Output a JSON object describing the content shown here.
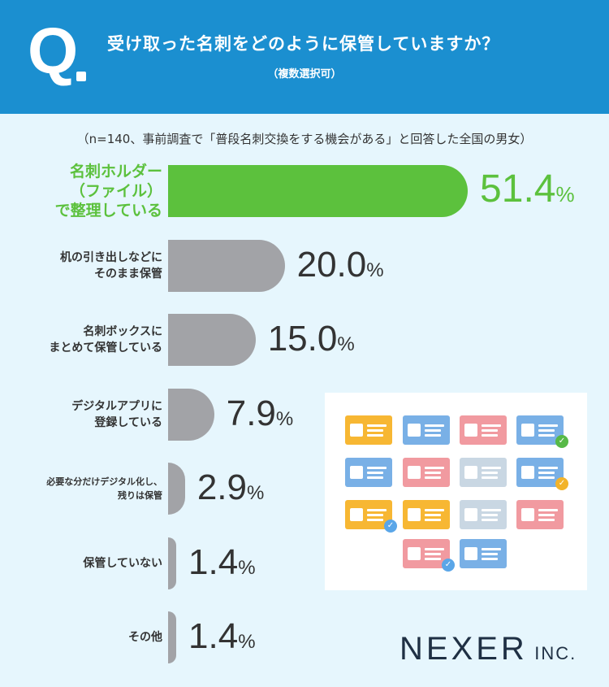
{
  "header": {
    "q_mark": "Q",
    "title": "受け取った名刺をどのように保管していますか？",
    "subtitle": "（複数選択可）"
  },
  "note": "（n=140、事前調査で「普段名刺交換をする機会がある」と回答した全国の男女）",
  "colors": {
    "header": "#1b8fd0",
    "highlight": "#5cc13d",
    "bar": "#a2a3a7",
    "background": "#e6f6fd"
  },
  "chart_data": {
    "type": "bar",
    "orientation": "horizontal",
    "categories": [
      "名刺ホルダー\n（ファイル）\nで整理している",
      "机の引き出しなどに\nそのまま保管",
      "名刺ボックスに\nまとめて保管している",
      "デジタルアプリに\n登録している",
      "必要な分だけデジタル化し、\n残りは保管",
      "保管していない",
      "その他"
    ],
    "values": [
      51.4,
      20.0,
      15.0,
      7.9,
      2.9,
      1.4,
      1.4
    ],
    "value_labels": [
      "51.4",
      "20.0",
      "15.0",
      "7.9",
      "2.9",
      "1.4",
      "1.4"
    ],
    "unit": "%",
    "highlight_index": 0
  },
  "illustration": {
    "icon": "business-card-icons"
  },
  "logo": {
    "main": "NEXER",
    "suffix": "INC."
  }
}
